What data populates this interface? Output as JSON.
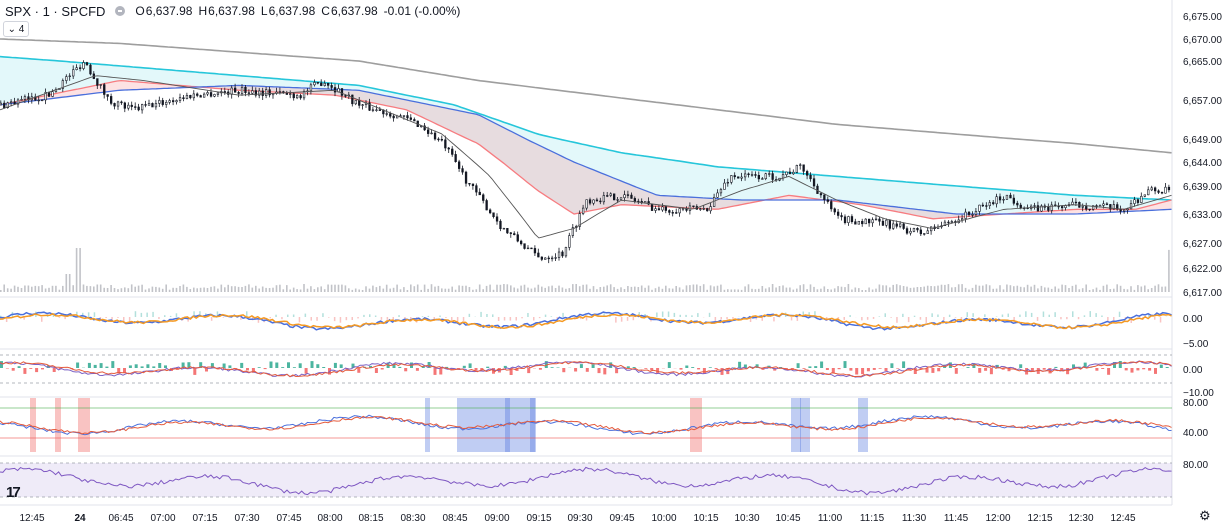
{
  "header": {
    "symbol": "SPX · 1 · SPCFD",
    "o_label": "O",
    "o_value": "6,637.98",
    "h_label": "H",
    "h_value": "6,637.98",
    "l_label": "L",
    "l_value": "6,637.98",
    "c_label": "C",
    "c_value": "6,637.98",
    "change": "-0.01 (-0.00%)",
    "indicators_badge": "⌄ 4"
  },
  "logo_text": "17",
  "chart_data": [
    {
      "type": "candlestick",
      "ylim": [
        6617,
        6675
      ],
      "y_ticks": [
        "6,675.00",
        "6,670.00",
        "6,665.00",
        "6,657.00",
        "6,649.00",
        "6,644.00",
        "6,639.00",
        "6,633.00",
        "6,627.00",
        "6,622.00",
        "6,617.00"
      ],
      "y_tick_values": [
        6675,
        6670,
        6665,
        6657,
        6649,
        6644,
        6639,
        6633,
        6627,
        6622,
        6617
      ],
      "x_ticks": [
        "12:45",
        "24",
        "06:45",
        "07:00",
        "07:15",
        "07:30",
        "07:45",
        "08:00",
        "08:15",
        "08:30",
        "08:45",
        "09:00",
        "09:15",
        "09:30",
        "09:45",
        "10:00",
        "10:15",
        "10:30",
        "10:45",
        "11:00",
        "11:15",
        "11:30",
        "11:45",
        "12:00",
        "12:15",
        "12:30",
        "12:45"
      ],
      "price_path": [
        [
          0,
          6656
        ],
        [
          0.04,
          6658
        ],
        [
          0.07,
          6665
        ],
        [
          0.09,
          6657
        ],
        [
          0.11,
          6655
        ],
        [
          0.16,
          6658
        ],
        [
          0.2,
          6659
        ],
        [
          0.25,
          6658
        ],
        [
          0.27,
          6661
        ],
        [
          0.3,
          6656
        ],
        [
          0.33,
          6654
        ],
        [
          0.35,
          6652
        ],
        [
          0.37,
          6648
        ],
        [
          0.39,
          6640
        ],
        [
          0.42,
          6630
        ],
        [
          0.45,
          6624
        ],
        [
          0.47,
          6625
        ],
        [
          0.49,
          6636
        ],
        [
          0.52,
          6637
        ],
        [
          0.55,
          6634
        ],
        [
          0.59,
          6634
        ],
        [
          0.61,
          6641
        ],
        [
          0.65,
          6641
        ],
        [
          0.67,
          6643
        ],
        [
          0.7,
          6632
        ],
        [
          0.74,
          6631
        ],
        [
          0.77,
          6629
        ],
        [
          0.81,
          6633
        ],
        [
          0.84,
          6637
        ],
        [
          0.86,
          6634
        ],
        [
          0.9,
          6635
        ],
        [
          0.94,
          6634
        ],
        [
          0.96,
          6638
        ],
        [
          0.98,
          6638
        ]
      ],
      "ema_fast_path": [
        [
          0,
          6655
        ],
        [
          0.08,
          6662
        ],
        [
          0.12,
          6661
        ],
        [
          0.2,
          6658
        ],
        [
          0.28,
          6659
        ],
        [
          0.32,
          6655
        ],
        [
          0.37,
          6650
        ],
        [
          0.41,
          6641
        ],
        [
          0.45,
          6628
        ],
        [
          0.48,
          6630
        ],
        [
          0.52,
          6636
        ],
        [
          0.58,
          6634
        ],
        [
          0.62,
          6638
        ],
        [
          0.66,
          6641
        ],
        [
          0.7,
          6636
        ],
        [
          0.74,
          6632
        ],
        [
          0.78,
          6630
        ],
        [
          0.84,
          6634
        ],
        [
          0.9,
          6635
        ],
        [
          0.94,
          6634
        ],
        [
          0.98,
          6637
        ]
      ],
      "ema_red_path": [
        [
          0,
          6656
        ],
        [
          0.1,
          6661
        ],
        [
          0.2,
          6659
        ],
        [
          0.28,
          6658
        ],
        [
          0.34,
          6655
        ],
        [
          0.4,
          6648
        ],
        [
          0.45,
          6638
        ],
        [
          0.48,
          6633
        ],
        [
          0.52,
          6635
        ],
        [
          0.6,
          6634
        ],
        [
          0.66,
          6637
        ],
        [
          0.72,
          6635
        ],
        [
          0.78,
          6632
        ],
        [
          0.84,
          6633
        ],
        [
          0.9,
          6634
        ],
        [
          0.95,
          6634
        ],
        [
          0.98,
          6636
        ]
      ],
      "ema_teal_path": [
        [
          0,
          6666
        ],
        [
          0.1,
          6664
        ],
        [
          0.2,
          6662
        ],
        [
          0.3,
          6660
        ],
        [
          0.38,
          6656
        ],
        [
          0.45,
          6650
        ],
        [
          0.52,
          6646
        ],
        [
          0.6,
          6643
        ],
        [
          0.7,
          6641
        ],
        [
          0.8,
          6639
        ],
        [
          0.9,
          6637
        ],
        [
          0.98,
          6636
        ]
      ],
      "ema_blue_path": [
        [
          0,
          6656
        ],
        [
          0.1,
          6659
        ],
        [
          0.2,
          6660
        ],
        [
          0.3,
          6659
        ],
        [
          0.4,
          6654
        ],
        [
          0.48,
          6644
        ],
        [
          0.55,
          6637
        ],
        [
          0.62,
          6636
        ],
        [
          0.7,
          6636
        ],
        [
          0.8,
          6633
        ],
        [
          0.9,
          6633
        ],
        [
          0.98,
          6634
        ]
      ],
      "sma_gray_path": [
        [
          0,
          6670
        ],
        [
          0.1,
          6669
        ],
        [
          0.2,
          6667
        ],
        [
          0.3,
          6665
        ],
        [
          0.4,
          6661
        ],
        [
          0.5,
          6658
        ],
        [
          0.6,
          6655
        ],
        [
          0.7,
          6652
        ],
        [
          0.8,
          6650
        ],
        [
          0.9,
          6648
        ],
        [
          0.98,
          6646
        ]
      ]
    },
    {
      "type": "line",
      "y_ticks": [
        "0.00",
        "−5.00"
      ],
      "y_tick_values": [
        0,
        -5
      ]
    },
    {
      "type": "line",
      "y_ticks": [
        "0.00",
        "−10.00"
      ],
      "y_tick_values": [
        0,
        -10
      ]
    },
    {
      "type": "line",
      "y_ticks": [
        "80.00",
        "40.00"
      ],
      "y_tick_values": [
        80,
        40
      ]
    },
    {
      "type": "line",
      "y_ticks": [
        "80.00"
      ],
      "y_tick_values": [
        80
      ]
    }
  ],
  "colors": {
    "up": "#131722",
    "axis_text": "#131722",
    "teal": "#26c6da",
    "red": "#f77c80",
    "blue": "#4a6fdc",
    "orange": "#f59a23",
    "gray": "#9e9e9e",
    "rsi": "#7e57c2"
  }
}
